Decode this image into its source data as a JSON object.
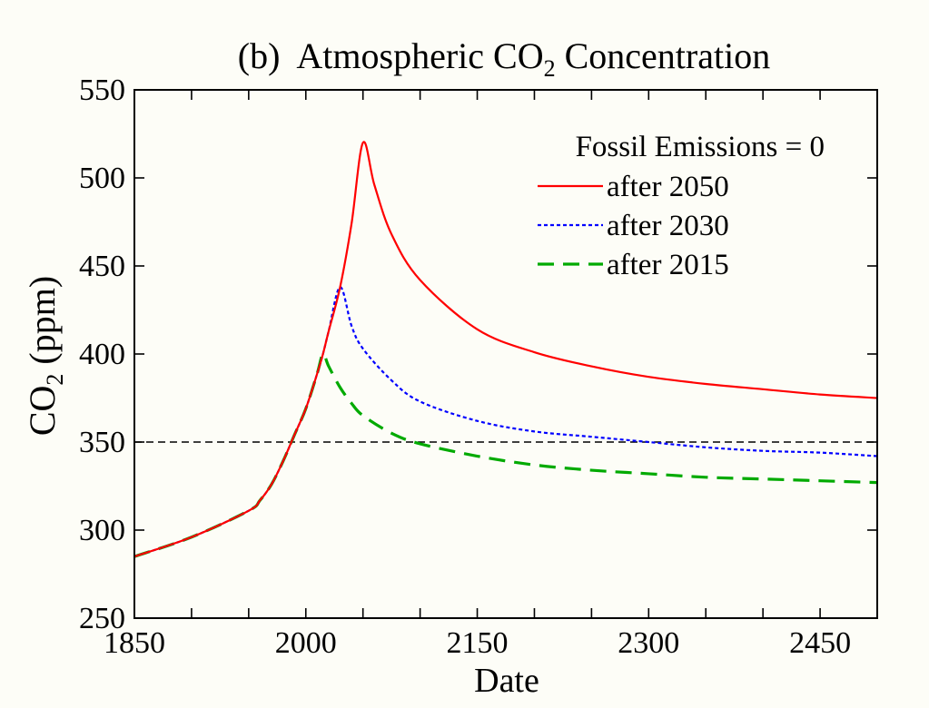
{
  "chart_data": {
    "type": "line",
    "panel_label": "(b)",
    "title": "Atmospheric CO",
    "title_subscript": "2",
    "title_suffix": " Concentration",
    "xlabel": "Date",
    "ylabel": "CO",
    "ylabel_subscript": "2",
    "ylabel_suffix": " (ppm)",
    "xlim": [
      1850,
      2500
    ],
    "ylim": [
      250,
      550
    ],
    "xticks": [
      1850,
      1900,
      1950,
      2000,
      2050,
      2100,
      2150,
      2200,
      2250,
      2300,
      2350,
      2400,
      2450,
      2500
    ],
    "xtick_labels": [
      "1850",
      "2000",
      "2150",
      "2300",
      "2450"
    ],
    "xtick_label_values": [
      1850,
      2000,
      2150,
      2300,
      2450
    ],
    "yticks": [
      250,
      300,
      350,
      400,
      450,
      500,
      550
    ],
    "ytick_labels": [
      "250",
      "300",
      "350",
      "400",
      "450",
      "500",
      "550"
    ],
    "grid": false,
    "legend_title": "Fossil Emissions = 0",
    "legend_position": "top-right",
    "reference_line": {
      "y": 350,
      "style": "dashed",
      "color": "#000000"
    },
    "series": [
      {
        "name": "after 2050",
        "color": "#ff0000",
        "style": "solid",
        "x": [
          1850,
          1900,
          1950,
          1960,
          1970,
          1980,
          1990,
          2000,
          2010,
          2015,
          2020,
          2030,
          2040,
          2050,
          2060,
          2075,
          2100,
          2150,
          2200,
          2250,
          2300,
          2350,
          2400,
          2450,
          2500
        ],
        "y": [
          285,
          296,
          311,
          317,
          326,
          339,
          354,
          369,
          389,
          400,
          413,
          438,
          474,
          520,
          496,
          468,
          442,
          414,
          401,
          393,
          387,
          383,
          380,
          377,
          375
        ]
      },
      {
        "name": "after 2030",
        "color": "#0000ff",
        "style": "dotted",
        "x": [
          1850,
          1900,
          1950,
          1960,
          1970,
          1980,
          1990,
          2000,
          2010,
          2015,
          2020,
          2030,
          2040,
          2050,
          2075,
          2100,
          2150,
          2200,
          2250,
          2300,
          2350,
          2400,
          2450,
          2500
        ],
        "y": [
          285,
          296,
          311,
          317,
          326,
          339,
          354,
          369,
          389,
          400,
          413,
          438,
          416,
          403,
          385,
          373,
          362,
          356,
          353,
          350,
          347,
          345,
          344,
          342
        ]
      },
      {
        "name": "after 2015",
        "color": "#00aa00",
        "style": "dashed",
        "x": [
          1850,
          1900,
          1950,
          1960,
          1970,
          1980,
          1990,
          2000,
          2010,
          2015,
          2020,
          2030,
          2040,
          2050,
          2075,
          2100,
          2150,
          2200,
          2250,
          2300,
          2350,
          2400,
          2450,
          2500
        ],
        "y": [
          285,
          296,
          311,
          317,
          326,
          339,
          354,
          369,
          389,
          400,
          393,
          381,
          372,
          365,
          355,
          349,
          342,
          337,
          334,
          332,
          330,
          329,
          328,
          327
        ]
      }
    ]
  }
}
